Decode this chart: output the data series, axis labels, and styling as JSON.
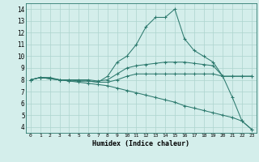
{
  "xlabel": "Humidex (Indice chaleur)",
  "background_color": "#d4eeeb",
  "grid_color": "#add4ce",
  "line_color": "#2d7a6e",
  "xlim": [
    -0.5,
    23.5
  ],
  "ylim": [
    3.5,
    14.5
  ],
  "x_ticks": [
    0,
    1,
    2,
    3,
    4,
    5,
    6,
    7,
    8,
    9,
    10,
    11,
    12,
    13,
    14,
    15,
    16,
    17,
    18,
    19,
    20,
    21,
    22,
    23
  ],
  "y_ticks": [
    4,
    5,
    6,
    7,
    8,
    9,
    10,
    11,
    12,
    13,
    14
  ],
  "series": [
    [
      8.0,
      8.2,
      8.2,
      8.0,
      8.0,
      7.9,
      7.9,
      7.8,
      8.3,
      9.5,
      10.0,
      11.0,
      12.5,
      13.3,
      13.3,
      14.0,
      11.5,
      10.5,
      10.0,
      9.5,
      8.3,
      6.5,
      4.5,
      3.8
    ],
    [
      8.0,
      8.2,
      8.1,
      8.0,
      8.0,
      8.0,
      8.0,
      7.9,
      8.0,
      8.5,
      9.0,
      9.2,
      9.3,
      9.4,
      9.5,
      9.5,
      9.5,
      9.4,
      9.3,
      9.2,
      8.3,
      8.3,
      8.3,
      8.3
    ],
    [
      8.0,
      8.2,
      8.1,
      8.0,
      7.9,
      7.9,
      7.9,
      7.8,
      7.8,
      8.0,
      8.3,
      8.5,
      8.5,
      8.5,
      8.5,
      8.5,
      8.5,
      8.5,
      8.5,
      8.5,
      8.3,
      8.3,
      8.3,
      8.3
    ],
    [
      8.0,
      8.2,
      8.1,
      8.0,
      7.9,
      7.8,
      7.7,
      7.6,
      7.5,
      7.3,
      7.1,
      6.9,
      6.7,
      6.5,
      6.3,
      6.1,
      5.8,
      5.6,
      5.4,
      5.2,
      5.0,
      4.8,
      4.5,
      3.8
    ]
  ]
}
